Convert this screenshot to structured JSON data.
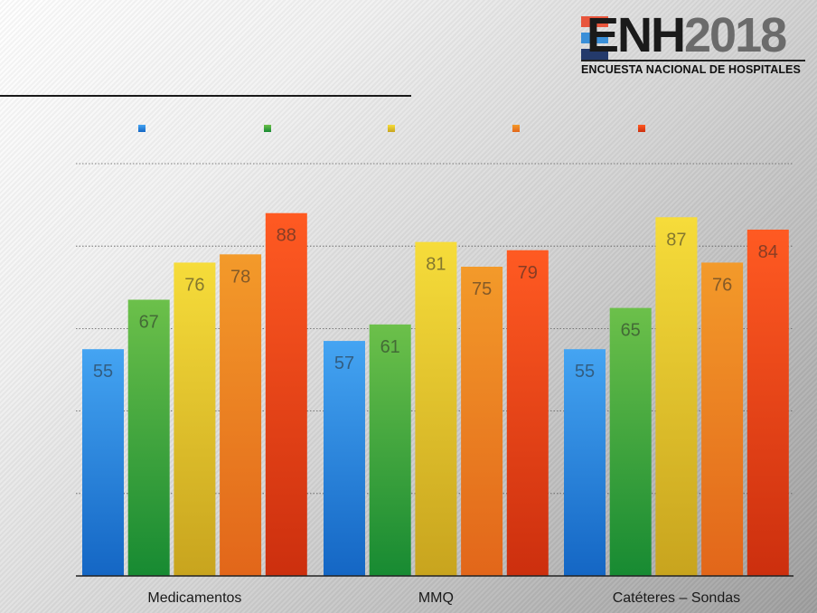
{
  "logo": {
    "brand": "ENH",
    "year": "2018",
    "subtitle": "ENCUESTA NACIONAL DE HOSPITALES",
    "stripe_colors": [
      "#e8553c",
      "#3a8fd8",
      "#243a6b"
    ]
  },
  "chart_data": {
    "type": "bar",
    "categories": [
      "Medicamentos",
      "MMQ",
      "Catéteres – Sondas"
    ],
    "series": [
      {
        "values": [
          55,
          57,
          55
        ],
        "color_top": "#44a4f2",
        "color_bottom": "#1466c4"
      },
      {
        "values": [
          67,
          61,
          65
        ],
        "color_top": "#6cc04a",
        "color_bottom": "#178a32"
      },
      {
        "values": [
          76,
          81,
          87
        ],
        "color_top": "#f6dc3a",
        "color_bottom": "#c8a41e"
      },
      {
        "values": [
          78,
          75,
          76
        ],
        "color_top": "#f39a2a",
        "color_bottom": "#e2661a"
      },
      {
        "values": [
          88,
          79,
          84
        ],
        "color_top": "#ff5a22",
        "color_bottom": "#cc2f0e"
      }
    ],
    "ylim": [
      0,
      100
    ],
    "grid": true,
    "legend_position": "top",
    "data_labels": true
  }
}
